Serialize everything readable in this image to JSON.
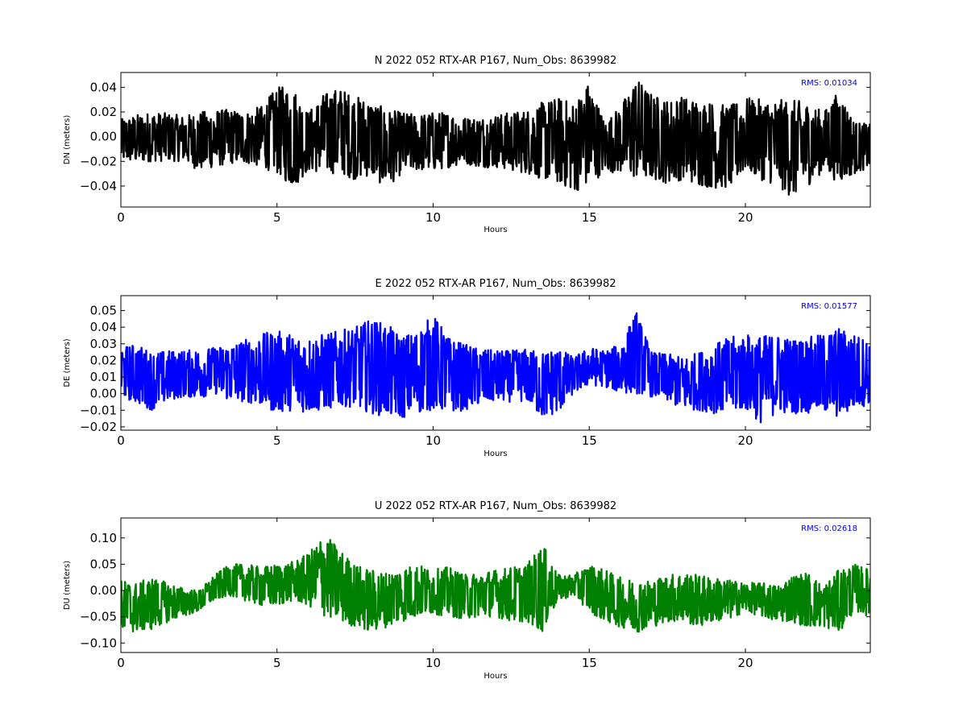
{
  "chart_data": [
    {
      "type": "line",
      "title": "N 2022 052 RTX-AR  P167, Num_Obs: 8639982",
      "xlabel": "Hours",
      "ylabel": "DN (meters)",
      "xlim": [
        0,
        24
      ],
      "ylim": [
        -0.057,
        0.052
      ],
      "xticks": [
        0,
        5,
        10,
        15,
        20
      ],
      "xtick_labels": [
        "0",
        "5",
        "10",
        "15",
        "20"
      ],
      "yticks": [
        0.04,
        0.02,
        0.0,
        -0.02,
        -0.04
      ],
      "ytick_labels": [
        "0.04",
        "0.02",
        "0.00",
        "−0.02",
        "−0.04"
      ],
      "annotation": "RMS:  0.01034",
      "grid": false,
      "series": [
        {
          "color": "#000000",
          "envelope": {
            "x": [
              0,
              0.5,
              1,
              1.5,
              2,
              2.5,
              3,
              3.5,
              4,
              4.5,
              5,
              5.5,
              6,
              6.5,
              7,
              7.5,
              8,
              8.5,
              9,
              9.5,
              10,
              10.5,
              11,
              11.5,
              12,
              12.5,
              13,
              13.5,
              14,
              14.5,
              15,
              15.5,
              16,
              16.5,
              17,
              17.5,
              18,
              18.5,
              19,
              19.5,
              20,
              20.5,
              21,
              21.5,
              22,
              22.5,
              23,
              23.5,
              24
            ],
            "upper": [
              0.014,
              0.018,
              0.02,
              0.019,
              0.017,
              0.02,
              0.022,
              0.022,
              0.02,
              0.025,
              0.04,
              0.042,
              0.02,
              0.035,
              0.04,
              0.033,
              0.03,
              0.022,
              0.02,
              0.018,
              0.02,
              0.02,
              0.016,
              0.016,
              0.018,
              0.02,
              0.022,
              0.028,
              0.032,
              0.028,
              0.045,
              0.012,
              0.025,
              0.048,
              0.035,
              0.03,
              0.033,
              0.03,
              0.028,
              0.025,
              0.032,
              0.03,
              0.03,
              0.03,
              0.028,
              0.02,
              0.038,
              0.012,
              0.01
            ],
            "lower": [
              -0.02,
              -0.022,
              -0.02,
              -0.02,
              -0.02,
              -0.028,
              -0.025,
              -0.022,
              -0.022,
              -0.025,
              -0.03,
              -0.042,
              -0.028,
              -0.03,
              -0.03,
              -0.035,
              -0.032,
              -0.042,
              -0.03,
              -0.028,
              -0.028,
              -0.025,
              -0.022,
              -0.025,
              -0.025,
              -0.028,
              -0.03,
              -0.035,
              -0.038,
              -0.045,
              -0.04,
              -0.028,
              -0.03,
              -0.035,
              -0.035,
              -0.038,
              -0.035,
              -0.04,
              -0.042,
              -0.042,
              -0.028,
              -0.035,
              -0.04,
              -0.05,
              -0.04,
              -0.028,
              -0.038,
              -0.03,
              -0.025
            ]
          }
        }
      ]
    },
    {
      "type": "line",
      "title": "E 2022 052 RTX-AR  P167, Num_Obs: 8639982",
      "xlabel": "Hours",
      "ylabel": "DE (meters)",
      "xlim": [
        0,
        24
      ],
      "ylim": [
        -0.022,
        0.059
      ],
      "xticks": [
        0,
        5,
        10,
        15,
        20
      ],
      "xtick_labels": [
        "0",
        "5",
        "10",
        "15",
        "20"
      ],
      "yticks": [
        0.05,
        0.04,
        0.03,
        0.02,
        0.01,
        0.0,
        -0.01,
        -0.02
      ],
      "ytick_labels": [
        "0.05",
        "0.04",
        "0.03",
        "0.02",
        "0.01",
        "0.00",
        "−0.01",
        "−0.02"
      ],
      "annotation": "RMS:  0.01577",
      "grid": false,
      "series": [
        {
          "color": "#0000ff",
          "envelope": {
            "x": [
              0,
              0.5,
              1,
              1.5,
              2,
              2.5,
              3,
              3.5,
              4,
              4.5,
              5,
              5.5,
              6,
              6.5,
              7,
              7.5,
              8,
              8.5,
              9,
              9.5,
              10,
              10.5,
              11,
              11.5,
              12,
              12.5,
              13,
              13.5,
              14,
              14.5,
              15,
              15.5,
              16,
              16.5,
              17,
              17.5,
              18,
              18.5,
              19,
              19.5,
              20,
              20.5,
              21,
              21.5,
              22,
              22.5,
              23,
              23.5,
              24
            ],
            "upper": [
              0.028,
              0.03,
              0.025,
              0.026,
              0.026,
              0.027,
              0.028,
              0.03,
              0.033,
              0.036,
              0.038,
              0.036,
              0.034,
              0.036,
              0.038,
              0.04,
              0.045,
              0.042,
              0.035,
              0.038,
              0.048,
              0.034,
              0.03,
              0.027,
              0.026,
              0.026,
              0.027,
              0.025,
              0.028,
              0.022,
              0.028,
              0.026,
              0.03,
              0.05,
              0.025,
              0.024,
              0.022,
              0.025,
              0.03,
              0.034,
              0.036,
              0.035,
              0.036,
              0.033,
              0.034,
              0.036,
              0.04,
              0.036,
              0.032
            ],
            "lower": [
              -0.002,
              -0.006,
              -0.01,
              -0.005,
              -0.002,
              -0.003,
              0.0,
              -0.005,
              -0.005,
              -0.008,
              -0.012,
              -0.01,
              -0.012,
              -0.01,
              -0.008,
              -0.008,
              -0.012,
              -0.014,
              -0.015,
              -0.012,
              -0.01,
              -0.012,
              -0.01,
              -0.007,
              -0.005,
              -0.005,
              -0.005,
              -0.015,
              -0.012,
              0.0,
              0.005,
              0.004,
              0.0,
              0.0,
              -0.002,
              -0.005,
              -0.01,
              -0.01,
              -0.012,
              -0.012,
              -0.01,
              -0.018,
              -0.012,
              -0.012,
              -0.012,
              -0.012,
              -0.015,
              -0.01,
              -0.006
            ]
          }
        }
      ]
    },
    {
      "type": "line",
      "title": "U 2022 052 RTX-AR  P167, Num_Obs: 8639982",
      "xlabel": "Hours",
      "ylabel": "DU (meters)",
      "xlim": [
        0,
        24
      ],
      "ylim": [
        -0.118,
        0.138
      ],
      "xticks": [
        0,
        5,
        10,
        15,
        20
      ],
      "xtick_labels": [
        "0",
        "5",
        "10",
        "15",
        "20"
      ],
      "yticks": [
        0.1,
        0.05,
        0.0,
        -0.05,
        -0.1
      ],
      "ytick_labels": [
        "0.10",
        "0.05",
        "0.00",
        "−0.05",
        "−0.10"
      ],
      "annotation": "RMS:  0.02618",
      "grid": false,
      "series": [
        {
          "color": "#008000",
          "envelope": {
            "x": [
              0,
              0.5,
              1,
              1.5,
              2,
              2.5,
              3,
              3.5,
              4,
              4.5,
              5,
              5.5,
              6,
              6.5,
              7,
              7.5,
              8,
              8.5,
              9,
              9.5,
              10,
              10.5,
              11,
              11.5,
              12,
              12.5,
              13,
              13.5,
              14,
              14.5,
              15,
              15.5,
              16,
              16.5,
              17,
              17.5,
              18,
              18.5,
              19,
              19.5,
              20,
              20.5,
              21,
              21.5,
              22,
              22.5,
              23,
              23.5,
              24
            ],
            "upper": [
              0.02,
              0.015,
              0.025,
              0.015,
              0.005,
              0.0,
              0.03,
              0.05,
              0.05,
              0.045,
              0.05,
              0.055,
              0.07,
              0.11,
              0.08,
              0.05,
              0.04,
              0.035,
              0.045,
              0.05,
              0.04,
              0.045,
              0.03,
              0.035,
              0.04,
              0.045,
              0.05,
              0.09,
              0.03,
              0.03,
              0.05,
              0.04,
              0.025,
              0.02,
              0.02,
              0.03,
              0.035,
              0.03,
              0.025,
              0.02,
              0.015,
              0.015,
              0.01,
              0.03,
              0.035,
              0.01,
              0.04,
              0.05,
              0.04
            ],
            "lower": [
              -0.08,
              -0.08,
              -0.075,
              -0.06,
              -0.05,
              -0.04,
              -0.02,
              -0.01,
              -0.02,
              -0.03,
              -0.03,
              -0.02,
              -0.03,
              -0.05,
              -0.06,
              -0.07,
              -0.08,
              -0.07,
              -0.06,
              -0.05,
              -0.045,
              -0.05,
              -0.055,
              -0.05,
              -0.05,
              -0.06,
              -0.06,
              -0.08,
              -0.02,
              -0.01,
              -0.04,
              -0.06,
              -0.07,
              -0.08,
              -0.07,
              -0.06,
              -0.06,
              -0.07,
              -0.06,
              -0.055,
              -0.04,
              -0.05,
              -0.06,
              -0.06,
              -0.07,
              -0.07,
              -0.08,
              -0.04,
              -0.05
            ]
          }
        }
      ]
    }
  ]
}
